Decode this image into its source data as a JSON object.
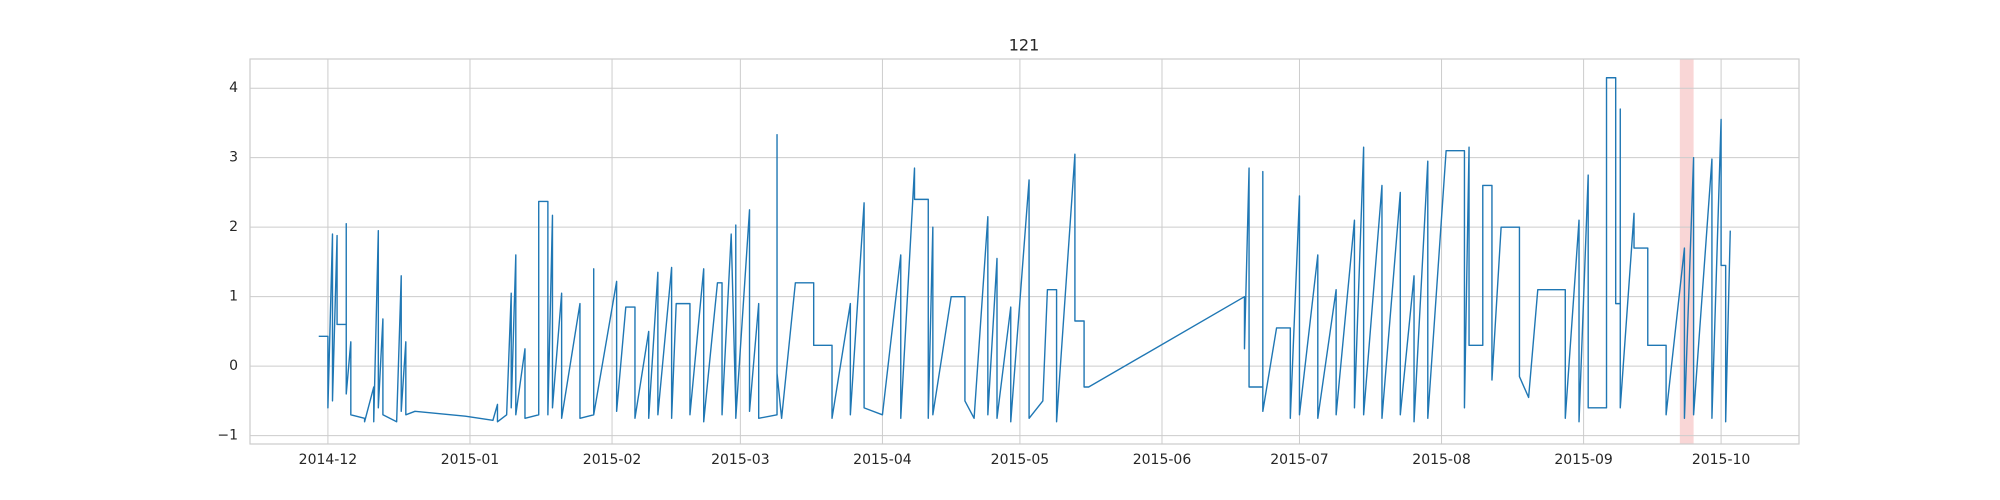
{
  "chart_data": {
    "type": "line",
    "title": "121",
    "x": [
      "2014-11-29",
      "2014-12-01",
      "2014-12-01",
      "2014-12-02",
      "2014-12-02",
      "2014-12-03",
      "2014-12-03",
      "2014-12-05",
      "2014-12-05",
      "2014-12-05",
      "2014-12-06",
      "2014-12-06",
      "2014-12-09",
      "2014-12-09",
      "2014-12-11",
      "2014-12-11",
      "2014-12-12",
      "2014-12-12",
      "2014-12-13",
      "2014-12-13",
      "2014-12-16",
      "2014-12-17",
      "2014-12-17",
      "2014-12-18",
      "2014-12-18",
      "2014-12-20",
      "2014-12-31",
      "2015-01-06",
      "2015-01-07",
      "2015-01-07",
      "2015-01-09",
      "2015-01-10",
      "2015-01-10",
      "2015-01-11",
      "2015-01-11",
      "2015-01-13",
      "2015-01-13",
      "2015-01-16",
      "2015-01-16",
      "2015-01-18",
      "2015-01-18",
      "2015-01-19",
      "2015-01-19",
      "2015-01-21",
      "2015-01-21",
      "2015-01-25",
      "2015-01-25",
      "2015-01-28",
      "2015-01-28",
      "2015-01-28",
      "2015-02-02",
      "2015-02-02",
      "2015-02-04",
      "2015-02-06",
      "2015-02-06",
      "2015-02-09",
      "2015-02-09",
      "2015-02-11",
      "2015-02-11",
      "2015-02-14",
      "2015-02-14",
      "2015-02-15",
      "2015-02-18",
      "2015-02-18",
      "2015-02-21",
      "2015-02-21",
      "2015-02-24",
      "2015-02-25",
      "2015-02-25",
      "2015-02-27",
      "2015-02-28",
      "2015-02-28",
      "2015-02-28",
      "2015-03-03",
      "2015-03-03",
      "2015-03-05",
      "2015-03-05",
      "2015-03-09",
      "2015-03-09",
      "2015-03-09",
      "2015-03-10",
      "2015-03-13",
      "2015-03-17",
      "2015-03-17",
      "2015-03-21",
      "2015-03-21",
      "2015-03-25",
      "2015-03-25",
      "2015-03-28",
      "2015-03-28",
      "2015-04-01",
      "2015-04-05",
      "2015-04-05",
      "2015-04-08",
      "2015-04-08",
      "2015-04-11",
      "2015-04-11",
      "2015-04-12",
      "2015-04-12",
      "2015-04-16",
      "2015-04-19",
      "2015-04-19",
      "2015-04-21",
      "2015-04-24",
      "2015-04-24",
      "2015-04-26",
      "2015-04-26",
      "2015-04-29",
      "2015-04-29",
      "2015-05-03",
      "2015-05-03",
      "2015-05-06",
      "2015-05-07",
      "2015-05-09",
      "2015-05-09",
      "2015-05-13",
      "2015-05-13",
      "2015-05-15",
      "2015-05-15",
      "2015-05-16",
      "2015-06-19",
      "2015-06-19",
      "2015-06-20",
      "2015-06-20",
      "2015-06-23",
      "2015-06-23",
      "2015-06-23",
      "2015-06-26",
      "2015-06-29",
      "2015-06-29",
      "2015-07-01",
      "2015-07-01",
      "2015-07-05",
      "2015-07-05",
      "2015-07-09",
      "2015-07-09",
      "2015-07-13",
      "2015-07-13",
      "2015-07-15",
      "2015-07-15",
      "2015-07-19",
      "2015-07-19",
      "2015-07-23",
      "2015-07-23",
      "2015-07-26",
      "2015-07-26",
      "2015-07-29",
      "2015-07-29",
      "2015-08-02",
      "2015-08-06",
      "2015-08-06",
      "2015-08-07",
      "2015-08-07",
      "2015-08-10",
      "2015-08-10",
      "2015-08-12",
      "2015-08-12",
      "2015-08-14",
      "2015-08-18",
      "2015-08-18",
      "2015-08-20",
      "2015-08-22",
      "2015-08-28",
      "2015-08-28",
      "2015-08-31",
      "2015-08-31",
      "2015-09-02",
      "2015-09-02",
      "2015-09-06",
      "2015-09-06",
      "2015-09-08",
      "2015-09-08",
      "2015-09-09",
      "2015-09-09",
      "2015-09-09",
      "2015-09-12",
      "2015-09-12",
      "2015-09-15",
      "2015-09-15",
      "2015-09-19",
      "2015-09-19",
      "2015-09-23",
      "2015-09-23",
      "2015-09-25",
      "2015-09-25",
      "2015-09-29",
      "2015-09-29",
      "2015-10-01",
      "2015-10-01",
      "2015-10-02",
      "2015-10-02",
      "2015-10-03"
    ],
    "values": [
      0.43,
      0.43,
      -0.6,
      1.9,
      -0.5,
      1.88,
      0.6,
      0.6,
      2.05,
      -0.4,
      0.35,
      -0.7,
      -0.75,
      -0.8,
      -0.3,
      -0.8,
      1.95,
      -0.6,
      0.68,
      -0.7,
      -0.8,
      1.3,
      -0.65,
      0.35,
      -0.7,
      -0.65,
      -0.72,
      -0.78,
      -0.55,
      -0.8,
      -0.7,
      1.05,
      -0.6,
      1.6,
      -0.7,
      0.25,
      -0.75,
      -0.7,
      2.37,
      2.37,
      -0.7,
      2.17,
      -0.6,
      1.05,
      -0.75,
      0.9,
      -0.75,
      -0.7,
      1.4,
      -0.7,
      1.22,
      -0.65,
      0.85,
      0.85,
      -0.75,
      0.5,
      -0.75,
      1.35,
      -0.7,
      1.42,
      -0.75,
      0.9,
      0.9,
      -0.7,
      1.4,
      -0.8,
      1.2,
      1.2,
      -0.7,
      1.9,
      -0.6,
      2.03,
      -0.75,
      2.25,
      -0.65,
      0.9,
      -0.75,
      -0.7,
      3.33,
      -0.1,
      -0.75,
      1.2,
      1.2,
      0.3,
      0.3,
      -0.75,
      0.9,
      -0.7,
      2.35,
      -0.6,
      -0.7,
      1.6,
      -0.75,
      2.85,
      2.4,
      2.4,
      -0.75,
      2.0,
      -0.7,
      1.0,
      1.0,
      -0.5,
      -0.75,
      2.15,
      -0.7,
      1.55,
      -0.75,
      0.85,
      -0.8,
      2.68,
      -0.75,
      -0.5,
      1.1,
      1.1,
      -0.8,
      3.05,
      0.65,
      0.65,
      -0.3,
      -0.3,
      1.0,
      0.25,
      2.85,
      -0.3,
      -0.3,
      2.8,
      -0.65,
      0.55,
      0.55,
      -0.75,
      2.45,
      -0.7,
      1.6,
      -0.75,
      1.1,
      -0.7,
      2.1,
      -0.6,
      3.15,
      -0.7,
      2.6,
      -0.75,
      2.5,
      -0.7,
      1.3,
      -0.8,
      2.95,
      -0.75,
      3.1,
      3.1,
      -0.6,
      3.15,
      0.3,
      0.3,
      2.6,
      2.6,
      -0.2,
      2.0,
      2.0,
      -0.15,
      -0.45,
      1.1,
      1.1,
      -0.75,
      2.1,
      -0.8,
      2.75,
      -0.6,
      -0.6,
      4.15,
      4.15,
      0.9,
      0.9,
      3.7,
      -0.6,
      2.2,
      1.7,
      1.7,
      0.3,
      0.3,
      -0.7,
      1.7,
      -0.75,
      3.0,
      -0.7,
      2.98,
      -0.75,
      3.55,
      1.45,
      1.45,
      -0.8,
      1.95
    ],
    "color": "#1f77b4",
    "xlim": [
      "2014-11-14",
      "2015-10-18"
    ],
    "xticks": [
      {
        "value": "2014-12-01",
        "label": "2014-12"
      },
      {
        "value": "2015-01-01",
        "label": "2015-01"
      },
      {
        "value": "2015-02-01",
        "label": "2015-02"
      },
      {
        "value": "2015-03-01",
        "label": "2015-03"
      },
      {
        "value": "2015-04-01",
        "label": "2015-04"
      },
      {
        "value": "2015-05-01",
        "label": "2015-05"
      },
      {
        "value": "2015-06-01",
        "label": "2015-06"
      },
      {
        "value": "2015-07-01",
        "label": "2015-07"
      },
      {
        "value": "2015-08-01",
        "label": "2015-08"
      },
      {
        "value": "2015-09-01",
        "label": "2015-09"
      },
      {
        "value": "2015-10-01",
        "label": "2015-10"
      }
    ],
    "ylim": [
      -1.12,
      4.42
    ],
    "yticks": [
      {
        "value": -1,
        "label": "−1"
      },
      0,
      1,
      2,
      3,
      4
    ],
    "grid": true,
    "highlight": {
      "x": [
        "2015-09-22",
        "2015-09-25"
      ],
      "color": "#f9d6d6"
    }
  }
}
